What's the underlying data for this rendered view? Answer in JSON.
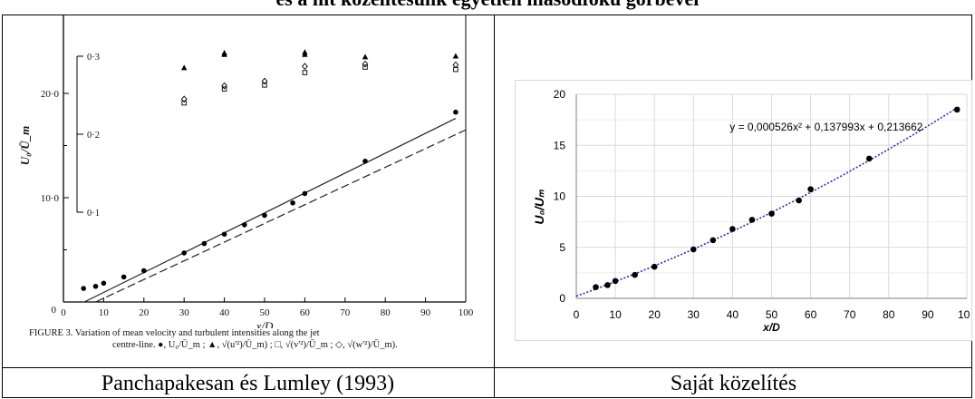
{
  "header": {
    "title": "és a hit közelítésunk egyetlen másodfokú görbével"
  },
  "captions": {
    "left": "Panchapakesan és Lumley (1993)",
    "right": "Saját közelítés"
  },
  "left_figure": {
    "figure_caption_line1": "FIGURE 3. Variation of mean velocity and turbulent intensities along the jet",
    "figure_caption_line2": "centre-line. ●, U₀/Ū_m ; ▲, √(u'²)/Ū_m) ; □, √(v'²)/Ū_m ; ◇, √(w'²)/Ū_m)."
  },
  "chart_data": [
    {
      "type": "scatter",
      "title": "",
      "xlabel": "x/D",
      "ylabel": "U₀/Ū_m",
      "xlim": [
        0,
        100
      ],
      "ylim": [
        0,
        25
      ],
      "x_ticks": [
        "0",
        "10",
        "20",
        "30",
        "40",
        "50",
        "60",
        "70",
        "80",
        "90",
        "100"
      ],
      "y_ticks": [
        "10·0",
        "20·0"
      ],
      "secondary_axis": {
        "ticks": [
          "0·1",
          "0·2",
          "0·3"
        ],
        "range": [
          0.1,
          0.3
        ]
      },
      "series": [
        {
          "name": "U₀/Ū_m",
          "marker": "circle",
          "x": [
            5,
            8,
            10,
            15,
            20,
            30,
            35,
            40,
            45,
            50,
            57,
            60,
            75,
            97.5
          ],
          "y": [
            1.3,
            1.5,
            1.8,
            2.4,
            3.0,
            4.7,
            5.6,
            6.5,
            7.4,
            8.3,
            9.5,
            10.4,
            13.5,
            18.2
          ]
        },
        {
          "name": "√(u'²)/Ū_m",
          "marker": "triangle",
          "x": [
            30,
            40,
            40,
            60,
            60,
            75,
            97.5
          ],
          "y": [
            0.285,
            0.302,
            0.304,
            0.302,
            0.305,
            0.299,
            0.3
          ]
        },
        {
          "name": "√(v'²)/Ū_m",
          "marker": "square",
          "x": [
            30,
            40,
            50,
            60,
            75,
            97.5
          ],
          "y": [
            0.24,
            0.258,
            0.263,
            0.279,
            0.286,
            0.283
          ]
        },
        {
          "name": "√(w'²)/Ū_m",
          "marker": "diamond",
          "x": [
            30,
            40,
            50,
            60,
            75,
            97.5
          ],
          "y": [
            0.245,
            0.262,
            0.268,
            0.287,
            0.29,
            0.289
          ]
        }
      ],
      "lines": [
        {
          "style": "solid",
          "x": [
            5.2,
            97.5
          ],
          "y": [
            0,
            17.6
          ]
        },
        {
          "style": "dashed",
          "x": [
            8,
            100
          ],
          "y": [
            0,
            16.5
          ]
        }
      ]
    },
    {
      "type": "scatter",
      "title": "",
      "xlabel": "x/D",
      "ylabel": "U₀/Uₘ",
      "xlim": [
        0,
        100
      ],
      "ylim": [
        0,
        20
      ],
      "x_ticks": [
        "0",
        "10",
        "20",
        "30",
        "40",
        "50",
        "60",
        "70",
        "80",
        "90",
        "100"
      ],
      "y_ticks": [
        "0",
        "5",
        "10",
        "15",
        "20"
      ],
      "grid": true,
      "trendline_label": "y = 0,000526x² + 0,137993x + 0,213662",
      "trendline": {
        "type": "polynomial",
        "a": 0.000526,
        "b": 0.137993,
        "c": 0.213662,
        "color": "#1f2fb0"
      },
      "series": [
        {
          "name": "",
          "color": "#000000",
          "x": [
            5,
            8,
            10,
            15,
            20,
            30,
            35,
            40,
            45,
            50,
            57,
            60,
            75,
            97.5
          ],
          "y": [
            1.1,
            1.3,
            1.7,
            2.3,
            3.1,
            4.8,
            5.7,
            6.8,
            7.7,
            8.3,
            9.6,
            10.7,
            13.7,
            18.5
          ]
        }
      ]
    }
  ]
}
